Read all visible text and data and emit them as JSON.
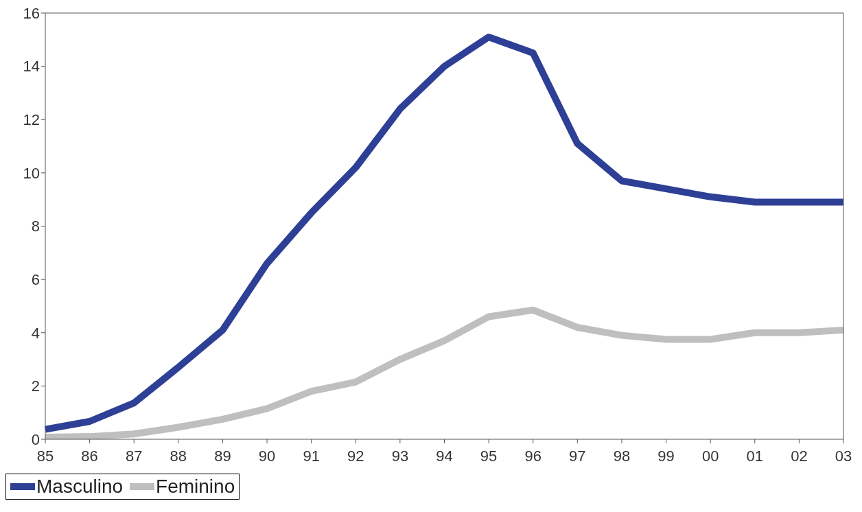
{
  "chart_data": {
    "type": "line",
    "categories": [
      "85",
      "86",
      "87",
      "88",
      "89",
      "90",
      "91",
      "92",
      "93",
      "94",
      "95",
      "96",
      "97",
      "98",
      "99",
      "00",
      "01",
      "02",
      "03"
    ],
    "series": [
      {
        "name": "Masculino",
        "color": "#2e3f96",
        "values": [
          0.37,
          0.67,
          1.36,
          2.7,
          4.1,
          6.6,
          8.5,
          10.2,
          12.4,
          14.0,
          15.1,
          14.5,
          11.1,
          9.7,
          9.4,
          9.1,
          8.9,
          8.9,
          8.9
        ]
      },
      {
        "name": "Feminino",
        "color": "#bfbfbf",
        "values": [
          0.08,
          0.1,
          0.2,
          0.45,
          0.75,
          1.15,
          1.8,
          2.15,
          3.0,
          3.7,
          4.6,
          4.85,
          4.2,
          3.9,
          3.75,
          3.75,
          4.0,
          4.0,
          4.1
        ]
      }
    ],
    "ylim": [
      0,
      16
    ],
    "yticks": [
      0,
      2,
      4,
      6,
      8,
      10,
      12,
      14,
      16
    ],
    "grid": false,
    "legend": "bottom",
    "marker": "none",
    "line_style": "solid"
  }
}
